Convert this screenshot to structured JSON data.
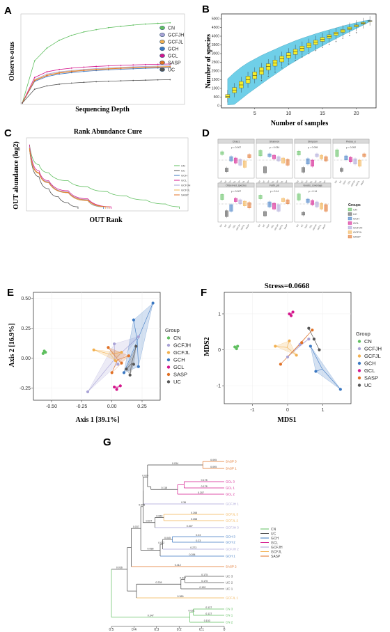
{
  "colors": {
    "CN": "#5fbf5f",
    "GCFJH": "#a9a3d6",
    "GCFJL": "#f2b04f",
    "GCH": "#3b78c2",
    "GCL": "#d4168c",
    "SASP": "#e07025",
    "UC": "#555555"
  },
  "panels": {
    "A": {
      "label": "A",
      "xlabel": "Sequencing Depth",
      "ylabel": "Observe-otus",
      "legend": [
        "CN",
        "GCFJH",
        "GCFJL",
        "GCH",
        "GCL",
        "SASP",
        "UC"
      ]
    },
    "B": {
      "label": "B",
      "xlabel": "Number of samples",
      "ylabel": "Number of species",
      "yticks": [
        "0",
        "500",
        "1000",
        "1500",
        "2000",
        "2500",
        "3000",
        "3500",
        "4000",
        "4500",
        "5000"
      ],
      "xticks": [
        "5",
        "10",
        "15",
        "20"
      ]
    },
    "C": {
      "label": "C",
      "title": "Rank Abundance Cure",
      "xlabel": "OUT Rank",
      "ylabel": "OUT abundance (log2)",
      "legend": [
        "CN",
        "UC",
        "GCH",
        "GCL",
        "GCFJH",
        "GCFJL",
        "SASP"
      ]
    },
    "D": {
      "label": "D",
      "legend_title": "Groups",
      "legend": [
        "CN",
        "UC",
        "GCH",
        "GCL",
        "GCFJH",
        "GCFJL",
        "SASP"
      ],
      "facets": [
        "Chao1",
        "Shannon",
        "Simpson",
        "Pielou_e",
        "Observed_species",
        "Faith_pd",
        "Goods_coverage"
      ],
      "pvals": [
        "p = 0.007",
        "p = 0.034",
        "p = 0.008",
        "p = 0.052",
        "p = 0.007",
        "p = 0.14",
        "p = 0.14"
      ]
    },
    "E": {
      "label": "E",
      "xlabel": "Axis 1 [39.1%]",
      "ylabel": "Axis 2 [16.9%]",
      "legend_title": "Group",
      "legend": [
        "CN",
        "GCFJH",
        "GCFJL",
        "GCH",
        "GCL",
        "SASP",
        "UC"
      ],
      "xticks": [
        "-0.50",
        "-0.25",
        "0.00",
        "0.25"
      ],
      "yticks": [
        "0.50",
        "0.25",
        "0.00",
        "-0.25"
      ]
    },
    "F": {
      "label": "F",
      "title": "Stress=0.0668",
      "xlabel": "MDS1",
      "ylabel": "MDS2",
      "legend_title": "Group",
      "legend": [
        "CN",
        "GCFJH",
        "GCFJL",
        "GCH",
        "GCL",
        "SASP",
        "UC"
      ],
      "xticks": [
        "-1",
        "0",
        "1"
      ],
      "yticks": [
        "1",
        "0",
        "-1"
      ]
    },
    "G": {
      "label": "G",
      "legend": [
        "CN",
        "UC",
        "GCH",
        "GCL",
        "GCFJH",
        "GCFJL",
        "SASP"
      ],
      "xticks": [
        "0.5",
        "0.4",
        "0.3",
        "0.2",
        "0.1",
        "0"
      ]
    }
  },
  "chart_data": [
    {
      "panel": "A",
      "type": "line",
      "x": [
        0,
        500,
        1000,
        1500,
        2000,
        2500,
        3000,
        3500,
        4000,
        4500,
        5000,
        5500,
        6000
      ],
      "series": [
        {
          "name": "CN",
          "values": [
            0,
            430,
            560,
            640,
            690,
            725,
            748,
            768,
            782,
            795,
            805,
            812,
            818
          ]
        },
        {
          "name": "GCFJH",
          "values": [
            0,
            240,
            295,
            318,
            332,
            343,
            351,
            358,
            364,
            369,
            373,
            377,
            380
          ]
        },
        {
          "name": "GCFJL",
          "values": [
            0,
            235,
            285,
            310,
            325,
            336,
            344,
            351,
            357,
            362,
            366,
            370,
            373
          ]
        },
        {
          "name": "GCH",
          "values": [
            0,
            220,
            270,
            295,
            310,
            322,
            331,
            338,
            344,
            349,
            354,
            357,
            360
          ]
        },
        {
          "name": "GCL",
          "values": [
            0,
            260,
            318,
            342,
            356,
            366,
            373,
            379,
            384,
            388,
            392,
            395,
            398
          ]
        },
        {
          "name": "SASP",
          "values": [
            0,
            228,
            280,
            305,
            320,
            332,
            340,
            347,
            353,
            358,
            362,
            366,
            369
          ]
        },
        {
          "name": "UC",
          "values": [
            0,
            140,
            175,
            192,
            203,
            211,
            217,
            222,
            226,
            230,
            233,
            236,
            238
          ]
        }
      ]
    },
    {
      "panel": "B",
      "type": "box",
      "x": [
        1,
        2,
        3,
        4,
        5,
        6,
        7,
        8,
        9,
        10,
        11,
        12,
        13,
        14,
        15,
        16,
        17,
        18,
        19,
        20,
        21,
        22
      ],
      "median": [
        550,
        900,
        1200,
        1500,
        1750,
        2000,
        2250,
        2450,
        2700,
        2900,
        3100,
        3300,
        3480,
        3650,
        3820,
        3980,
        4150,
        4300,
        4450,
        4600,
        4750,
        4880
      ],
      "q1": [
        450,
        750,
        1020,
        1300,
        1550,
        1800,
        2050,
        2280,
        2520,
        2750,
        2950,
        3150,
        3340,
        3520,
        3700,
        3880,
        4050,
        4220,
        4380,
        4540,
        4700,
        4870
      ],
      "q3": [
        650,
        1050,
        1400,
        1700,
        1950,
        2200,
        2420,
        2630,
        2850,
        3050,
        3250,
        3430,
        3600,
        3770,
        3930,
        4080,
        4230,
        4380,
        4520,
        4650,
        4790,
        4890
      ],
      "ylim": [
        0,
        5200
      ]
    },
    {
      "panel": "C",
      "type": "line",
      "xlim": [
        0,
        800
      ],
      "ylim": [
        0,
        17
      ],
      "series": [
        {
          "name": "CN",
          "x": [
            1,
            50,
            100,
            200,
            300,
            400,
            500,
            600,
            700,
            770
          ],
          "values": [
            16,
            11,
            9,
            7,
            5.5,
            4.3,
            3.2,
            2.2,
            1.2,
            0.5
          ]
        },
        {
          "name": "UC",
          "x": [
            1,
            50,
            100,
            150,
            200,
            250
          ],
          "values": [
            15,
            8,
            5,
            3,
            1.5,
            0.5
          ]
        },
        {
          "name": "GCH",
          "x": [
            1,
            50,
            100,
            200,
            300,
            380
          ],
          "values": [
            15,
            9,
            6.5,
            4,
            2,
            0.5
          ]
        },
        {
          "name": "GCL",
          "x": [
            1,
            50,
            100,
            200,
            300,
            420
          ],
          "values": [
            16,
            9.5,
            7,
            4.5,
            2.5,
            0.5
          ]
        },
        {
          "name": "GCFJH",
          "x": [
            1,
            50,
            100,
            200,
            300,
            400
          ],
          "values": [
            15.5,
            9,
            6.8,
            4.2,
            2.3,
            0.5
          ]
        },
        {
          "name": "GCFJL",
          "x": [
            1,
            50,
            100,
            200,
            300,
            390
          ],
          "values": [
            15,
            8.8,
            6.5,
            4,
            2,
            0.5
          ]
        },
        {
          "name": "SASP",
          "x": [
            1,
            50,
            100,
            200,
            300,
            410
          ],
          "values": [
            15.2,
            9,
            6.6,
            4.1,
            2.2,
            0.5
          ]
        }
      ]
    },
    {
      "panel": "E",
      "type": "scatter",
      "xlim": [
        -0.65,
        0.4
      ],
      "ylim": [
        -0.35,
        0.55
      ],
      "series": [
        {
          "name": "CN",
          "points": [
            [
              -0.57,
              0.04
            ],
            [
              -0.56,
              0.06
            ],
            [
              -0.55,
              0.05
            ]
          ]
        },
        {
          "name": "GCFJH",
          "points": [
            [
              -0.2,
              -0.28
            ],
            [
              0.02,
              0.12
            ],
            [
              0.22,
              0.18
            ],
            [
              0.05,
              -0.05
            ]
          ]
        },
        {
          "name": "GCFJL",
          "points": [
            [
              -0.15,
              0.07
            ],
            [
              0.03,
              -0.02
            ],
            [
              0.08,
              0.05
            ]
          ]
        },
        {
          "name": "GCH",
          "points": [
            [
              0.34,
              0.46
            ],
            [
              0.18,
              0.32
            ],
            [
              0.1,
              -0.12
            ],
            [
              0.22,
              -0.07
            ]
          ]
        },
        {
          "name": "GCL",
          "points": [
            [
              0.02,
              -0.24
            ],
            [
              0.04,
              -0.26
            ],
            [
              0.07,
              -0.23
            ]
          ]
        },
        {
          "name": "SASP",
          "points": [
            [
              0.0,
              -0.12
            ],
            [
              0.14,
              0.02
            ],
            [
              -0.03,
              0.09
            ],
            [
              0.08,
              -0.04
            ]
          ]
        },
        {
          "name": "UC",
          "points": [
            [
              0.15,
              -0.14
            ],
            [
              0.12,
              -0.09
            ],
            [
              0.2,
              0.1
            ],
            [
              0.18,
              -0.05
            ]
          ]
        }
      ]
    },
    {
      "panel": "F",
      "type": "scatter",
      "xlim": [
        -1.8,
        1.8
      ],
      "ylim": [
        -1.5,
        1.6
      ],
      "series": [
        {
          "name": "CN",
          "points": [
            [
              -1.5,
              0.08
            ],
            [
              -1.45,
              0.03
            ],
            [
              -1.42,
              0.1
            ]
          ]
        },
        {
          "name": "GCFJH",
          "points": [
            [
              0.0,
              -0.2
            ],
            [
              0.35,
              0.15
            ],
            [
              0.6,
              0.3
            ]
          ]
        },
        {
          "name": "GCFJL",
          "points": [
            [
              -0.35,
              0.1
            ],
            [
              0.05,
              0.25
            ],
            [
              0.25,
              -0.15
            ]
          ]
        },
        {
          "name": "GCH",
          "points": [
            [
              0.65,
              0.1
            ],
            [
              1.5,
              -1.1
            ],
            [
              0.8,
              -0.6
            ]
          ]
        },
        {
          "name": "GCL",
          "points": [
            [
              0.05,
              1.0
            ],
            [
              0.15,
              1.05
            ],
            [
              0.1,
              0.95
            ]
          ]
        },
        {
          "name": "SASP",
          "points": [
            [
              0.7,
              0.55
            ],
            [
              0.4,
              0.2
            ],
            [
              -0.2,
              -0.4
            ]
          ]
        },
        {
          "name": "UC",
          "points": [
            [
              0.75,
              0.3
            ],
            [
              0.6,
              0.6
            ],
            [
              0.9,
              0.0
            ]
          ]
        }
      ]
    },
    {
      "panel": "G",
      "type": "dendrogram",
      "leaves": [
        {
          "name": "SASP 3",
          "group": "SASP"
        },
        {
          "name": "SASP 1",
          "group": "SASP"
        },
        {
          "name": "GCL 3",
          "group": "GCL"
        },
        {
          "name": "GCL 1",
          "group": "GCL"
        },
        {
          "name": "GCL 2",
          "group": "GCL"
        },
        {
          "name": "GCFJH 1",
          "group": "GCFJH"
        },
        {
          "name": "GCFJL 3",
          "group": "GCFJL"
        },
        {
          "name": "GCFJL 2",
          "group": "GCFJL"
        },
        {
          "name": "GCFJH 3",
          "group": "GCFJH"
        },
        {
          "name": "GCH 3",
          "group": "GCH"
        },
        {
          "name": "GCH 2",
          "group": "GCH"
        },
        {
          "name": "GCFJH 2",
          "group": "GCFJH"
        },
        {
          "name": "GCH 1",
          "group": "GCH"
        },
        {
          "name": "SASP 2",
          "group": "SASP"
        },
        {
          "name": "UC 3",
          "group": "UC"
        },
        {
          "name": "UC 2",
          "group": "UC"
        },
        {
          "name": "UC 1",
          "group": "UC"
        },
        {
          "name": "GCFJL 1",
          "group": "GCFJL"
        },
        {
          "name": "CN 3",
          "group": "CN"
        },
        {
          "name": "CN 1",
          "group": "CN"
        },
        {
          "name": "CN 2",
          "group": "CN"
        }
      ],
      "branch_labels": [
        "0.095",
        "0.095",
        "0.178",
        "0.178",
        "0.207",
        "0.36",
        "0.268",
        "0.268",
        "0.307",
        "0.23",
        "0.23",
        "0.273",
        "0.284",
        "0.412",
        "0.175",
        "0.175",
        "0.192",
        "0.389",
        "0.137",
        "0.137",
        "0.153",
        "0.034",
        "0.029",
        "0.118",
        "0.008",
        "0.069",
        "0.027",
        "0.045",
        "0.022",
        "0.088",
        "0.017",
        "0.037",
        "0.228",
        "0.347",
        "0.036",
        "0.021",
        "0.021"
      ]
    }
  ]
}
